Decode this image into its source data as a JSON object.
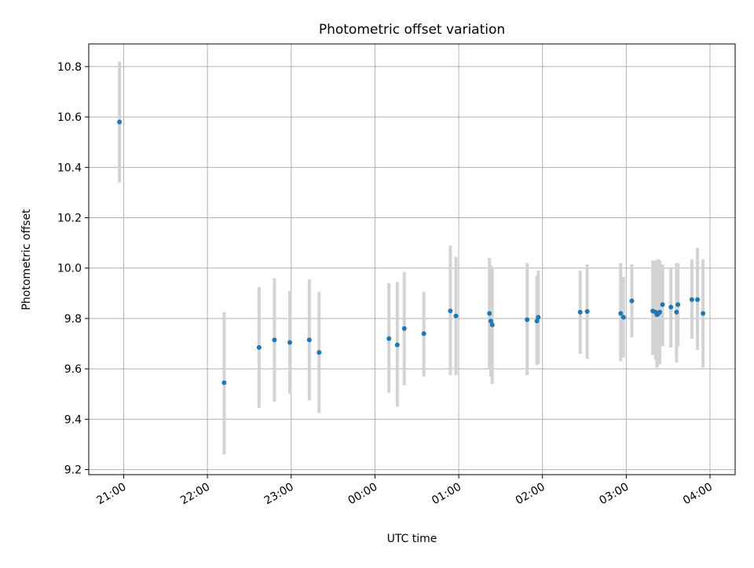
{
  "chart_data": {
    "type": "scatter",
    "title": "Photometric offset variation",
    "xlabel": "UTC time",
    "ylabel": "Photometric offset",
    "x_tick_labels": [
      "21:00",
      "22:00",
      "23:00",
      "00:00",
      "01:00",
      "02:00",
      "03:00",
      "04:00"
    ],
    "x_tick_times": [
      "21:00",
      "22:00",
      "23:00",
      "00:00",
      "01:00",
      "02:00",
      "03:00",
      "04:00"
    ],
    "xlim": [
      "20:35",
      "04:18"
    ],
    "y_tick_labels": [
      "9.2",
      "9.4",
      "9.6",
      "9.8",
      "10.0",
      "10.2",
      "10.4",
      "10.6",
      "10.8"
    ],
    "y_ticks": [
      9.2,
      9.4,
      9.6,
      9.8,
      10.0,
      10.2,
      10.4,
      10.6,
      10.8
    ],
    "ylim": [
      9.18,
      10.89
    ],
    "grid": true,
    "legend": "none",
    "colors": {
      "marker": "#1f77b4",
      "errorbar": "#d3d3d3",
      "grid": "#b0b0b0",
      "axes": "#000000"
    },
    "points": [
      {
        "t": "20:57",
        "y": 10.58,
        "lo": 10.34,
        "hi": 10.82
      },
      {
        "t": "22:12",
        "y": 9.545,
        "lo": 9.26,
        "hi": 9.825
      },
      {
        "t": "22:37",
        "y": 9.685,
        "lo": 9.445,
        "hi": 9.925
      },
      {
        "t": "22:48",
        "y": 9.715,
        "lo": 9.47,
        "hi": 9.96
      },
      {
        "t": "22:59",
        "y": 9.705,
        "lo": 9.5,
        "hi": 9.91
      },
      {
        "t": "23:13",
        "y": 9.715,
        "lo": 9.475,
        "hi": 9.955
      },
      {
        "t": "23:20",
        "y": 9.665,
        "lo": 9.425,
        "hi": 9.905
      },
      {
        "t": "00:10",
        "y": 9.72,
        "lo": 9.505,
        "hi": 9.94
      },
      {
        "t": "00:16",
        "y": 9.695,
        "lo": 9.45,
        "hi": 9.945
      },
      {
        "t": "00:21",
        "y": 9.76,
        "lo": 9.535,
        "hi": 9.985
      },
      {
        "t": "00:35",
        "y": 9.74,
        "lo": 9.57,
        "hi": 9.905
      },
      {
        "t": "00:54",
        "y": 9.83,
        "lo": 9.575,
        "hi": 10.09
      },
      {
        "t": "00:58",
        "y": 9.81,
        "lo": 9.575,
        "hi": 10.045
      },
      {
        "t": "01:22",
        "y": 9.82,
        "lo": 9.6,
        "hi": 10.04
      },
      {
        "t": "01:23",
        "y": 9.79,
        "lo": 9.57,
        "hi": 10.01
      },
      {
        "t": "01:24",
        "y": 9.775,
        "lo": 9.54,
        "hi": 10.005
      },
      {
        "t": "01:49",
        "y": 9.795,
        "lo": 9.575,
        "hi": 10.02
      },
      {
        "t": "01:56",
        "y": 9.79,
        "lo": 9.615,
        "hi": 9.97
      },
      {
        "t": "01:57",
        "y": 9.805,
        "lo": 9.62,
        "hi": 9.99
      },
      {
        "t": "02:27",
        "y": 9.825,
        "lo": 9.66,
        "hi": 9.99
      },
      {
        "t": "02:32",
        "y": 9.828,
        "lo": 9.64,
        "hi": 10.015
      },
      {
        "t": "02:56",
        "y": 9.82,
        "lo": 9.63,
        "hi": 10.02
      },
      {
        "t": "02:58",
        "y": 9.805,
        "lo": 9.645,
        "hi": 9.965
      },
      {
        "t": "03:04",
        "y": 9.87,
        "lo": 9.725,
        "hi": 10.015
      },
      {
        "t": "03:19",
        "y": 9.83,
        "lo": 9.655,
        "hi": 10.03
      },
      {
        "t": "03:21",
        "y": 9.825,
        "lo": 9.635,
        "hi": 10.03
      },
      {
        "t": "03:22",
        "y": 9.815,
        "lo": 9.605,
        "hi": 10.03
      },
      {
        "t": "03:23",
        "y": 9.82,
        "lo": 9.615,
        "hi": 10.035
      },
      {
        "t": "03:24",
        "y": 9.825,
        "lo": 9.62,
        "hi": 10.03
      },
      {
        "t": "03:26",
        "y": 9.855,
        "lo": 9.69,
        "hi": 10.015
      },
      {
        "t": "03:32",
        "y": 9.845,
        "lo": 9.685,
        "hi": 10.0
      },
      {
        "t": "03:36",
        "y": 9.825,
        "lo": 9.625,
        "hi": 10.02
      },
      {
        "t": "03:37",
        "y": 9.855,
        "lo": 9.69,
        "hi": 10.02
      },
      {
        "t": "03:47",
        "y": 9.875,
        "lo": 9.72,
        "hi": 10.035
      },
      {
        "t": "03:51",
        "y": 9.875,
        "lo": 9.675,
        "hi": 10.08
      },
      {
        "t": "03:55",
        "y": 9.82,
        "lo": 9.605,
        "hi": 10.035
      }
    ]
  }
}
